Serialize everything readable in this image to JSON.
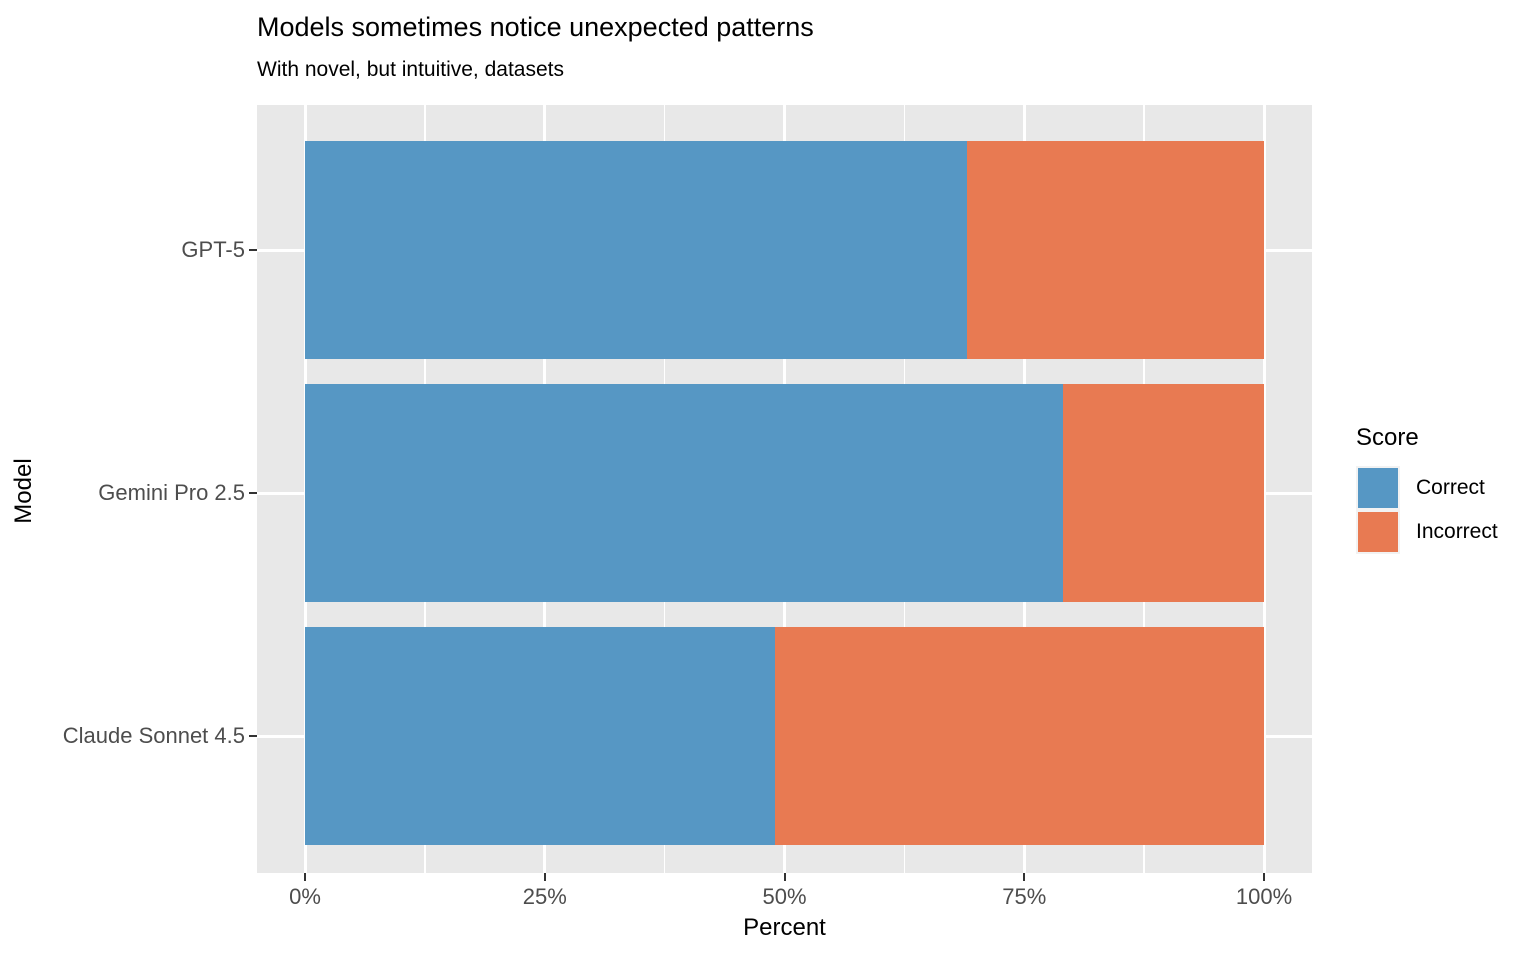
{
  "chart_data": {
    "type": "bar",
    "orientation": "horizontal",
    "stacked": true,
    "title": "Models sometimes notice unexpected patterns",
    "subtitle": "With novel, but intuitive, datasets",
    "xlabel": "Percent",
    "ylabel": "Model",
    "categories": [
      "GPT-5",
      "Gemini Pro 2.5",
      "Claude Sonnet 4.5"
    ],
    "series": [
      {
        "name": "Correct",
        "color": "#5697C4",
        "values": [
          69,
          79,
          49
        ]
      },
      {
        "name": "Incorrect",
        "color": "#E87A52",
        "values": [
          31,
          21,
          51
        ]
      }
    ],
    "xlim": [
      0,
      100
    ],
    "x_tick_labels": [
      "0%",
      "25%",
      "50%",
      "75%",
      "100%"
    ],
    "x_tick_values": [
      0,
      25,
      50,
      75,
      100
    ],
    "grid": true,
    "panel_background": "#E8E8E8",
    "grid_color": "#FFFFFF",
    "legend": {
      "title": "Score",
      "position": "right",
      "key_background": "#F2F2F2",
      "items": [
        {
          "label": "Correct",
          "color": "#5697C4"
        },
        {
          "label": "Incorrect",
          "color": "#E87A52"
        }
      ]
    }
  }
}
